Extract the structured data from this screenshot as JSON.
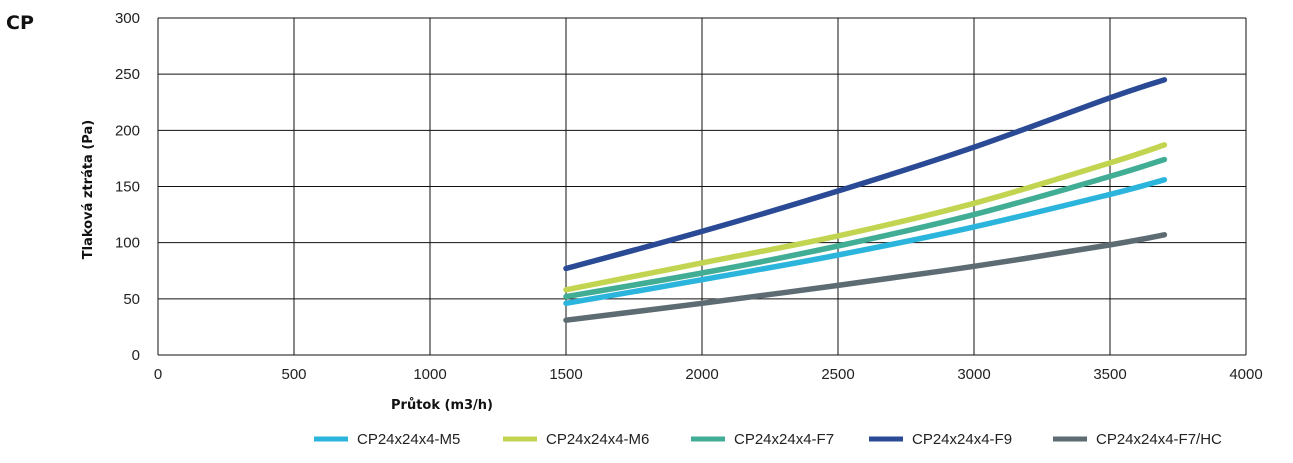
{
  "page_title": "CP",
  "chart_data": {
    "type": "line",
    "xlabel": "Průtok (m3/h)",
    "ylabel": "Tlaková ztráta (Pa)",
    "xlim": [
      0,
      4000
    ],
    "ylim": [
      0,
      300
    ],
    "x_ticks": [
      0,
      500,
      1000,
      1500,
      2000,
      2500,
      3000,
      3500,
      4000
    ],
    "y_ticks": [
      0,
      50,
      100,
      150,
      200,
      250,
      300
    ],
    "grid": true,
    "legend_position": "bottom",
    "series": [
      {
        "name": "CP24x24x4-M5",
        "color": "#2cb5dc",
        "x": [
          1500,
          2000,
          2500,
          3000,
          3500,
          3700
        ],
        "y": [
          46,
          67,
          89,
          114,
          143,
          156
        ]
      },
      {
        "name": "CP24x24x4-M6",
        "color": "#c3d450",
        "x": [
          1500,
          2000,
          2500,
          3000,
          3500,
          3700
        ],
        "y": [
          58,
          82,
          106,
          135,
          171,
          187
        ]
      },
      {
        "name": "CP24x24x4-F7",
        "color": "#41ad94",
        "x": [
          1500,
          2000,
          2500,
          3000,
          3500,
          3700
        ],
        "y": [
          52,
          73,
          97,
          125,
          159,
          174
        ]
      },
      {
        "name": "CP24x24x4-F9",
        "color": "#2a4a96",
        "x": [
          1500,
          2000,
          2500,
          3000,
          3500,
          3700
        ],
        "y": [
          77,
          110,
          146,
          185,
          229,
          245
        ]
      },
      {
        "name": "CP24x24x4-F7/HC",
        "color": "#5d6b73",
        "x": [
          1500,
          2000,
          2500,
          3000,
          3500,
          3700
        ],
        "y": [
          31,
          46,
          62,
          79,
          98,
          107
        ]
      }
    ]
  }
}
